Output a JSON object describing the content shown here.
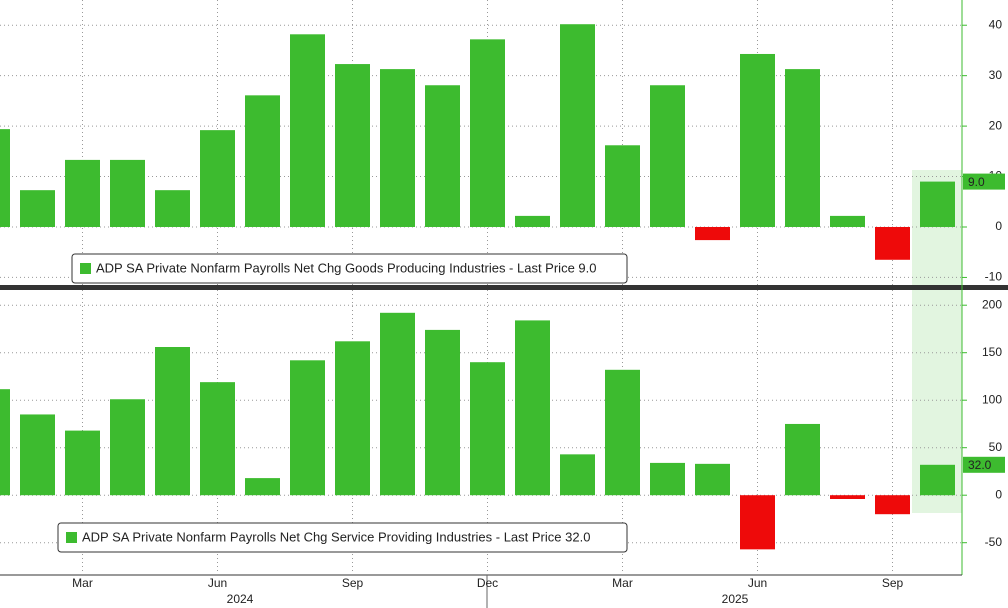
{
  "chart_data": [
    {
      "type": "bar",
      "legend": "ADP SA Private Nonfarm Payrolls Net Chg Goods Producing Industries - Last Price 9.0",
      "values": [
        19.4,
        7.3,
        13.3,
        13.3,
        7.3,
        19.2,
        26.1,
        38.2,
        32.3,
        31.3,
        28.1,
        37.2,
        2.2,
        40.2,
        16.2,
        28.1,
        -2.6,
        34.3,
        31.3,
        2.2,
        -6.5,
        9.0
      ],
      "last_price_label": "9.0",
      "color": "#3dbb2f",
      "negative_color": "#ee0a0a",
      "ylim": [
        -11.5,
        45
      ],
      "yticks": [
        -10,
        0,
        10,
        20,
        30,
        40
      ],
      "grid": true
    },
    {
      "type": "bar",
      "legend": "ADP SA Private Nonfarm Payrolls Net Chg Service Providing Industries - Last Price 32.0",
      "categories": [
        null,
        null,
        "Mar",
        null,
        null,
        "Jun",
        null,
        null,
        "Sep",
        null,
        null,
        "Dec",
        null,
        null,
        "Mar",
        null,
        null,
        "Jun",
        null,
        null,
        "Sep",
        null
      ],
      "year_labels": [
        "2024",
        "2025"
      ],
      "values": [
        111.6,
        85,
        68,
        101,
        156,
        119,
        18,
        142,
        162,
        192,
        174,
        140,
        184,
        43,
        132,
        34,
        33,
        -57,
        75,
        -4,
        -20,
        32.0
      ],
      "last_price_label": "32.0",
      "color": "#3dbb2f",
      "negative_color": "#ee0a0a",
      "ylim": [
        -84,
        216
      ],
      "yticks": [
        -50,
        0,
        50,
        100,
        150,
        200
      ],
      "grid": true
    }
  ]
}
